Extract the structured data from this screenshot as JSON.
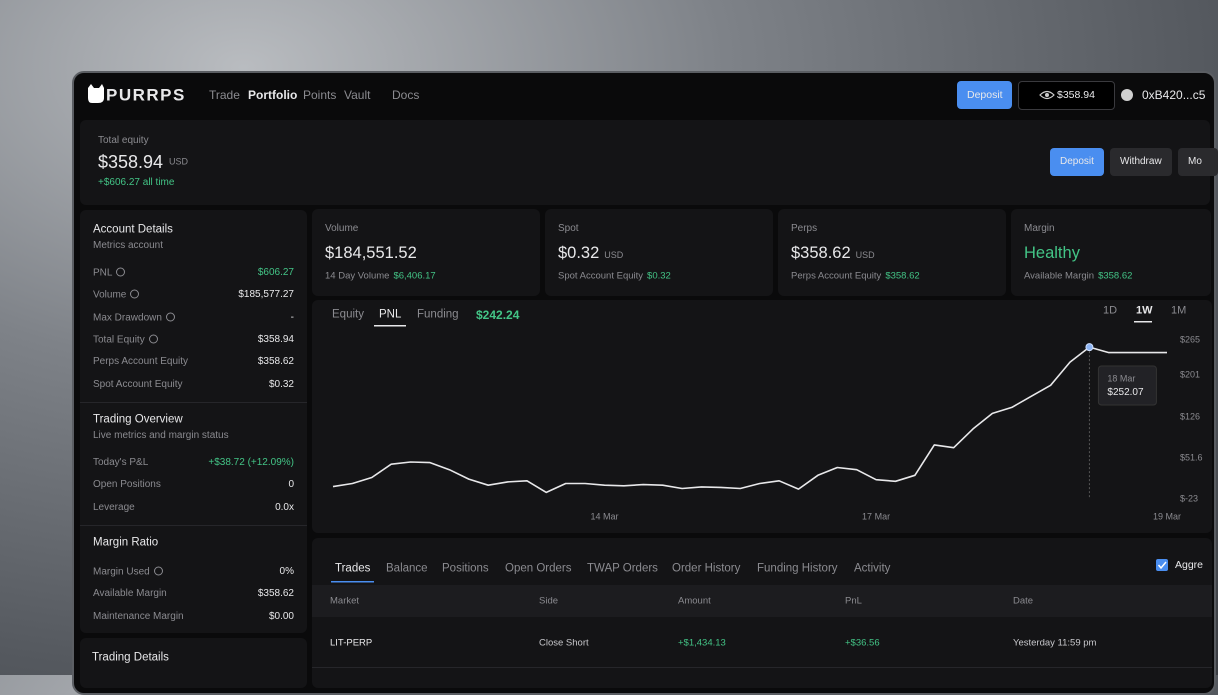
{
  "nav": {
    "brand": "PURRPS",
    "links": [
      "Trade",
      "Portfolio",
      "Points",
      "Vault",
      "Docs"
    ],
    "deposit": "Deposit",
    "balance": "$358.94",
    "address": "0xB420...c5"
  },
  "summary": {
    "label": "Total equity",
    "value": "$358.94",
    "unit": "USD",
    "change": "+$606.27 all time",
    "buttons": [
      "Deposit",
      "Withdraw",
      "Mo"
    ]
  },
  "account_details": {
    "title": "Account Details",
    "subtitle": "Metrics account",
    "rows": [
      [
        "PNL",
        "$606.27"
      ],
      [
        "Volume",
        "$185,577.27"
      ],
      [
        "Max Drawdown",
        "-"
      ],
      [
        "Total Equity",
        "$358.94"
      ],
      [
        "Perps Account Equity",
        "$358.62"
      ],
      [
        "Spot Account Equity",
        "$0.32"
      ]
    ]
  },
  "trading_overview": {
    "title": "Trading Overview",
    "subtitle": "Live metrics and margin status",
    "rows": [
      [
        "Today's P&L",
        "+$38.72 (+12.09%)"
      ],
      [
        "Open Positions",
        "0"
      ],
      [
        "Leverage",
        "0.0x"
      ]
    ]
  },
  "margin_ratio": {
    "title": "Margin Ratio",
    "rows": [
      [
        "Margin Used",
        "0%"
      ],
      [
        "Available Margin",
        "$358.62"
      ],
      [
        "Maintenance Margin",
        "$0.00"
      ]
    ]
  },
  "trading_details": {
    "title": "Trading Details"
  },
  "cards": [
    {
      "label": "Volume",
      "value": "$184,551.52",
      "sub_label": "14 Day Volume",
      "sub_value": "$6,406.17"
    },
    {
      "label": "Spot",
      "value": "$0.32",
      "unit": "USD",
      "sub_label": "Spot Account Equity",
      "sub_value": "$0.32"
    },
    {
      "label": "Perps",
      "value": "$358.62",
      "unit": "USD",
      "sub_label": "Perps Account Equity",
      "sub_value": "$358.62"
    },
    {
      "label": "Margin",
      "value": "Healthy",
      "sub_label": "Available Margin",
      "sub_value": "$358.62"
    }
  ],
  "chart_data": {
    "type": "line",
    "tabs": [
      "Equity",
      "PNL",
      "Funding"
    ],
    "headline": "$242.24",
    "ranges": [
      "1D",
      "1W",
      "1M"
    ],
    "categories": [
      null,
      null,
      null,
      null,
      null,
      null,
      null,
      null,
      null,
      null,
      null,
      null,
      null,
      null,
      "14 Mar",
      null,
      null,
      null,
      null,
      null,
      null,
      null,
      null,
      null,
      null,
      null,
      null,
      null,
      "17 Mar",
      null,
      null,
      null,
      null,
      null,
      null,
      null,
      null,
      null,
      null,
      null,
      null,
      null,
      null,
      "19 Mar"
    ],
    "values": [
      -0.6,
      5,
      16,
      40,
      44,
      43,
      30,
      13,
      2,
      8,
      10,
      -11,
      5,
      5,
      2,
      1,
      3,
      2,
      -4,
      -1,
      -2,
      -4,
      5,
      10,
      -5,
      20,
      34,
      30,
      12,
      9,
      20,
      75,
      70,
      104,
      132,
      143,
      163,
      183,
      225,
      252.07,
      242.24,
      242.24,
      242.24,
      242.24
    ],
    "color": "#e8e8ea",
    "ylim": [
      -23,
      265
    ],
    "yticks": [
      {
        "value": 265,
        "label": "$265"
      },
      {
        "value": 201,
        "label": "$201"
      },
      {
        "value": 126,
        "label": "$126"
      },
      {
        "value": 51.6,
        "label": "$51.6"
      },
      {
        "value": -23,
        "label": "$-23"
      }
    ],
    "grid": false,
    "tooltip": {
      "date": "18 Mar",
      "value": "$252.07"
    }
  },
  "table": {
    "tabs": [
      "Trades",
      "Balance",
      "Positions",
      "Open Orders",
      "TWAP Orders",
      "Order History",
      "Funding History",
      "Activity"
    ],
    "checkbox": "Aggre",
    "headers": [
      "Market",
      "Side",
      "Amount",
      "PnL",
      "Date"
    ],
    "rows": [
      [
        "LIT-PERP",
        "Close Short",
        "+$1,434.13",
        "+$36.56",
        "Yesterday 11:59 pm"
      ]
    ]
  }
}
